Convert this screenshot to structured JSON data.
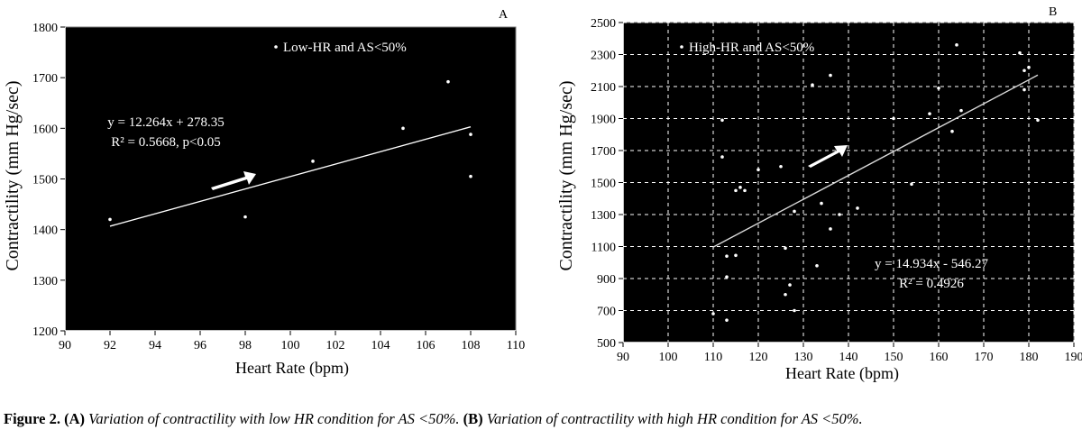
{
  "chart_data": [
    {
      "type": "scatter",
      "panel_label": "A",
      "legend": "Low-HR and AS<50%",
      "xlabel": "Heart Rate (bpm)",
      "ylabel": "Contractility (mm Hg/sec)",
      "xlim": [
        90,
        110
      ],
      "ylim": [
        1200,
        1800
      ],
      "xticks": [
        90,
        92,
        94,
        96,
        98,
        100,
        102,
        104,
        106,
        108,
        110
      ],
      "yticks": [
        1200,
        1300,
        1400,
        1500,
        1600,
        1700,
        1800
      ],
      "grid": false,
      "background": "#000000",
      "points": [
        {
          "x": 92,
          "y": 1420
        },
        {
          "x": 98,
          "y": 1425
        },
        {
          "x": 101,
          "y": 1535
        },
        {
          "x": 105,
          "y": 1600
        },
        {
          "x": 107,
          "y": 1692
        },
        {
          "x": 108,
          "y": 1588
        },
        {
          "x": 108,
          "y": 1505
        }
      ],
      "trendline": {
        "x_start": 92,
        "x_end": 108,
        "slope": 12.264,
        "intercept": 278.35
      },
      "equation": "y = 12.264x + 278.35",
      "r2_text": "R² = 0.5668, p<0.05"
    },
    {
      "type": "scatter",
      "panel_label": "B",
      "legend": "High-HR and AS<50%",
      "xlabel": "Heart Rate (bpm)",
      "ylabel": "Contractility (mm Hg/sec)",
      "xlim": [
        90,
        190
      ],
      "ylim": [
        500,
        2500
      ],
      "xticks": [
        90,
        100,
        110,
        120,
        130,
        140,
        150,
        160,
        170,
        180,
        190
      ],
      "yticks": [
        500,
        700,
        900,
        1100,
        1300,
        1500,
        1700,
        1900,
        2100,
        2300,
        2500
      ],
      "grid": true,
      "background": "#000000",
      "points": [
        {
          "x": 110,
          "y": 680
        },
        {
          "x": 112,
          "y": 1890
        },
        {
          "x": 112,
          "y": 1660
        },
        {
          "x": 113,
          "y": 1040
        },
        {
          "x": 113,
          "y": 910
        },
        {
          "x": 113,
          "y": 640
        },
        {
          "x": 115,
          "y": 1450
        },
        {
          "x": 115,
          "y": 1045
        },
        {
          "x": 116,
          "y": 1470
        },
        {
          "x": 117,
          "y": 1450
        },
        {
          "x": 120,
          "y": 1580
        },
        {
          "x": 125,
          "y": 1600
        },
        {
          "x": 126,
          "y": 1090
        },
        {
          "x": 126,
          "y": 800
        },
        {
          "x": 127,
          "y": 860
        },
        {
          "x": 128,
          "y": 1320
        },
        {
          "x": 128,
          "y": 700
        },
        {
          "x": 132,
          "y": 2110
        },
        {
          "x": 133,
          "y": 980
        },
        {
          "x": 134,
          "y": 1370
        },
        {
          "x": 136,
          "y": 2170
        },
        {
          "x": 136,
          "y": 1210
        },
        {
          "x": 138,
          "y": 1300
        },
        {
          "x": 142,
          "y": 1340
        },
        {
          "x": 150,
          "y": 1900
        },
        {
          "x": 154,
          "y": 1490
        },
        {
          "x": 158,
          "y": 1930
        },
        {
          "x": 160,
          "y": 2090
        },
        {
          "x": 163,
          "y": 1820
        },
        {
          "x": 164,
          "y": 2360
        },
        {
          "x": 165,
          "y": 1950
        },
        {
          "x": 178,
          "y": 2310
        },
        {
          "x": 179,
          "y": 2200
        },
        {
          "x": 179,
          "y": 2080
        },
        {
          "x": 180,
          "y": 2220
        },
        {
          "x": 182,
          "y": 1890
        }
      ],
      "trendline": {
        "x_start": 110,
        "x_end": 182,
        "slope": 14.934,
        "intercept": -546.27
      },
      "equation": "y = 14.934x - 546.27",
      "r2_text": "R² = 0.4926"
    }
  ],
  "caption": {
    "label": "Figure 2.",
    "a_tag": "(A)",
    "a_text": "Variation of contractility with low HR condition for AS <50%.",
    "b_tag": "(B)",
    "b_text": "Variation of contractility with high HR condition for AS <50%."
  }
}
